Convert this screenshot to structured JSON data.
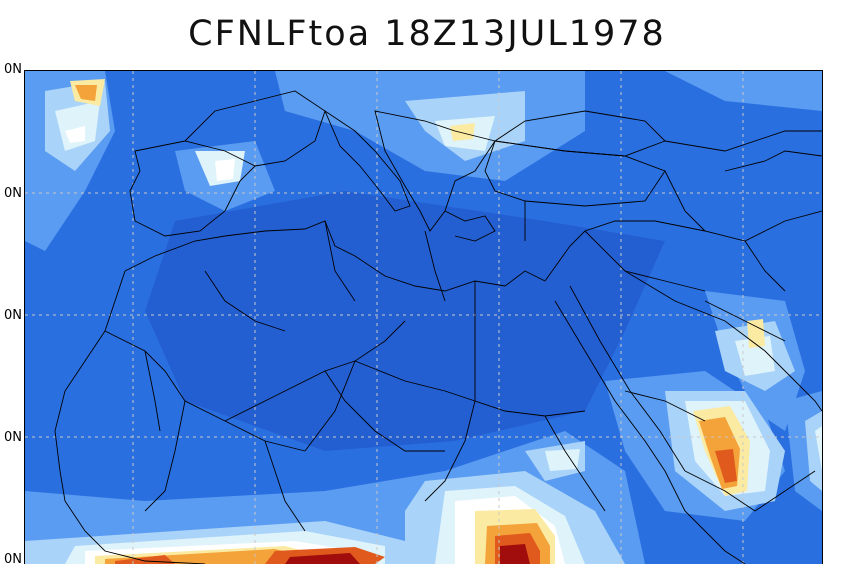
{
  "title": "CFNLFtoa 18Z13JUL1978",
  "lat_labels": [
    "0N",
    "0N",
    "0N",
    "0N",
    "0N"
  ],
  "colors": {
    "background_field": "#2a6fe0",
    "dark_field": "#245fd2",
    "light_blue": "#5a9cf2",
    "pale_blue": "#a9d3f8",
    "cyan_white": "#dff3fb",
    "white": "#ffffff",
    "pale_yellow": "#fbeaa2",
    "orange": "#f4a23a",
    "red_orange": "#e05a1d",
    "dark_red": "#a10c0c",
    "coastline": "#000000",
    "gridline": "#c8c8c8"
  }
}
